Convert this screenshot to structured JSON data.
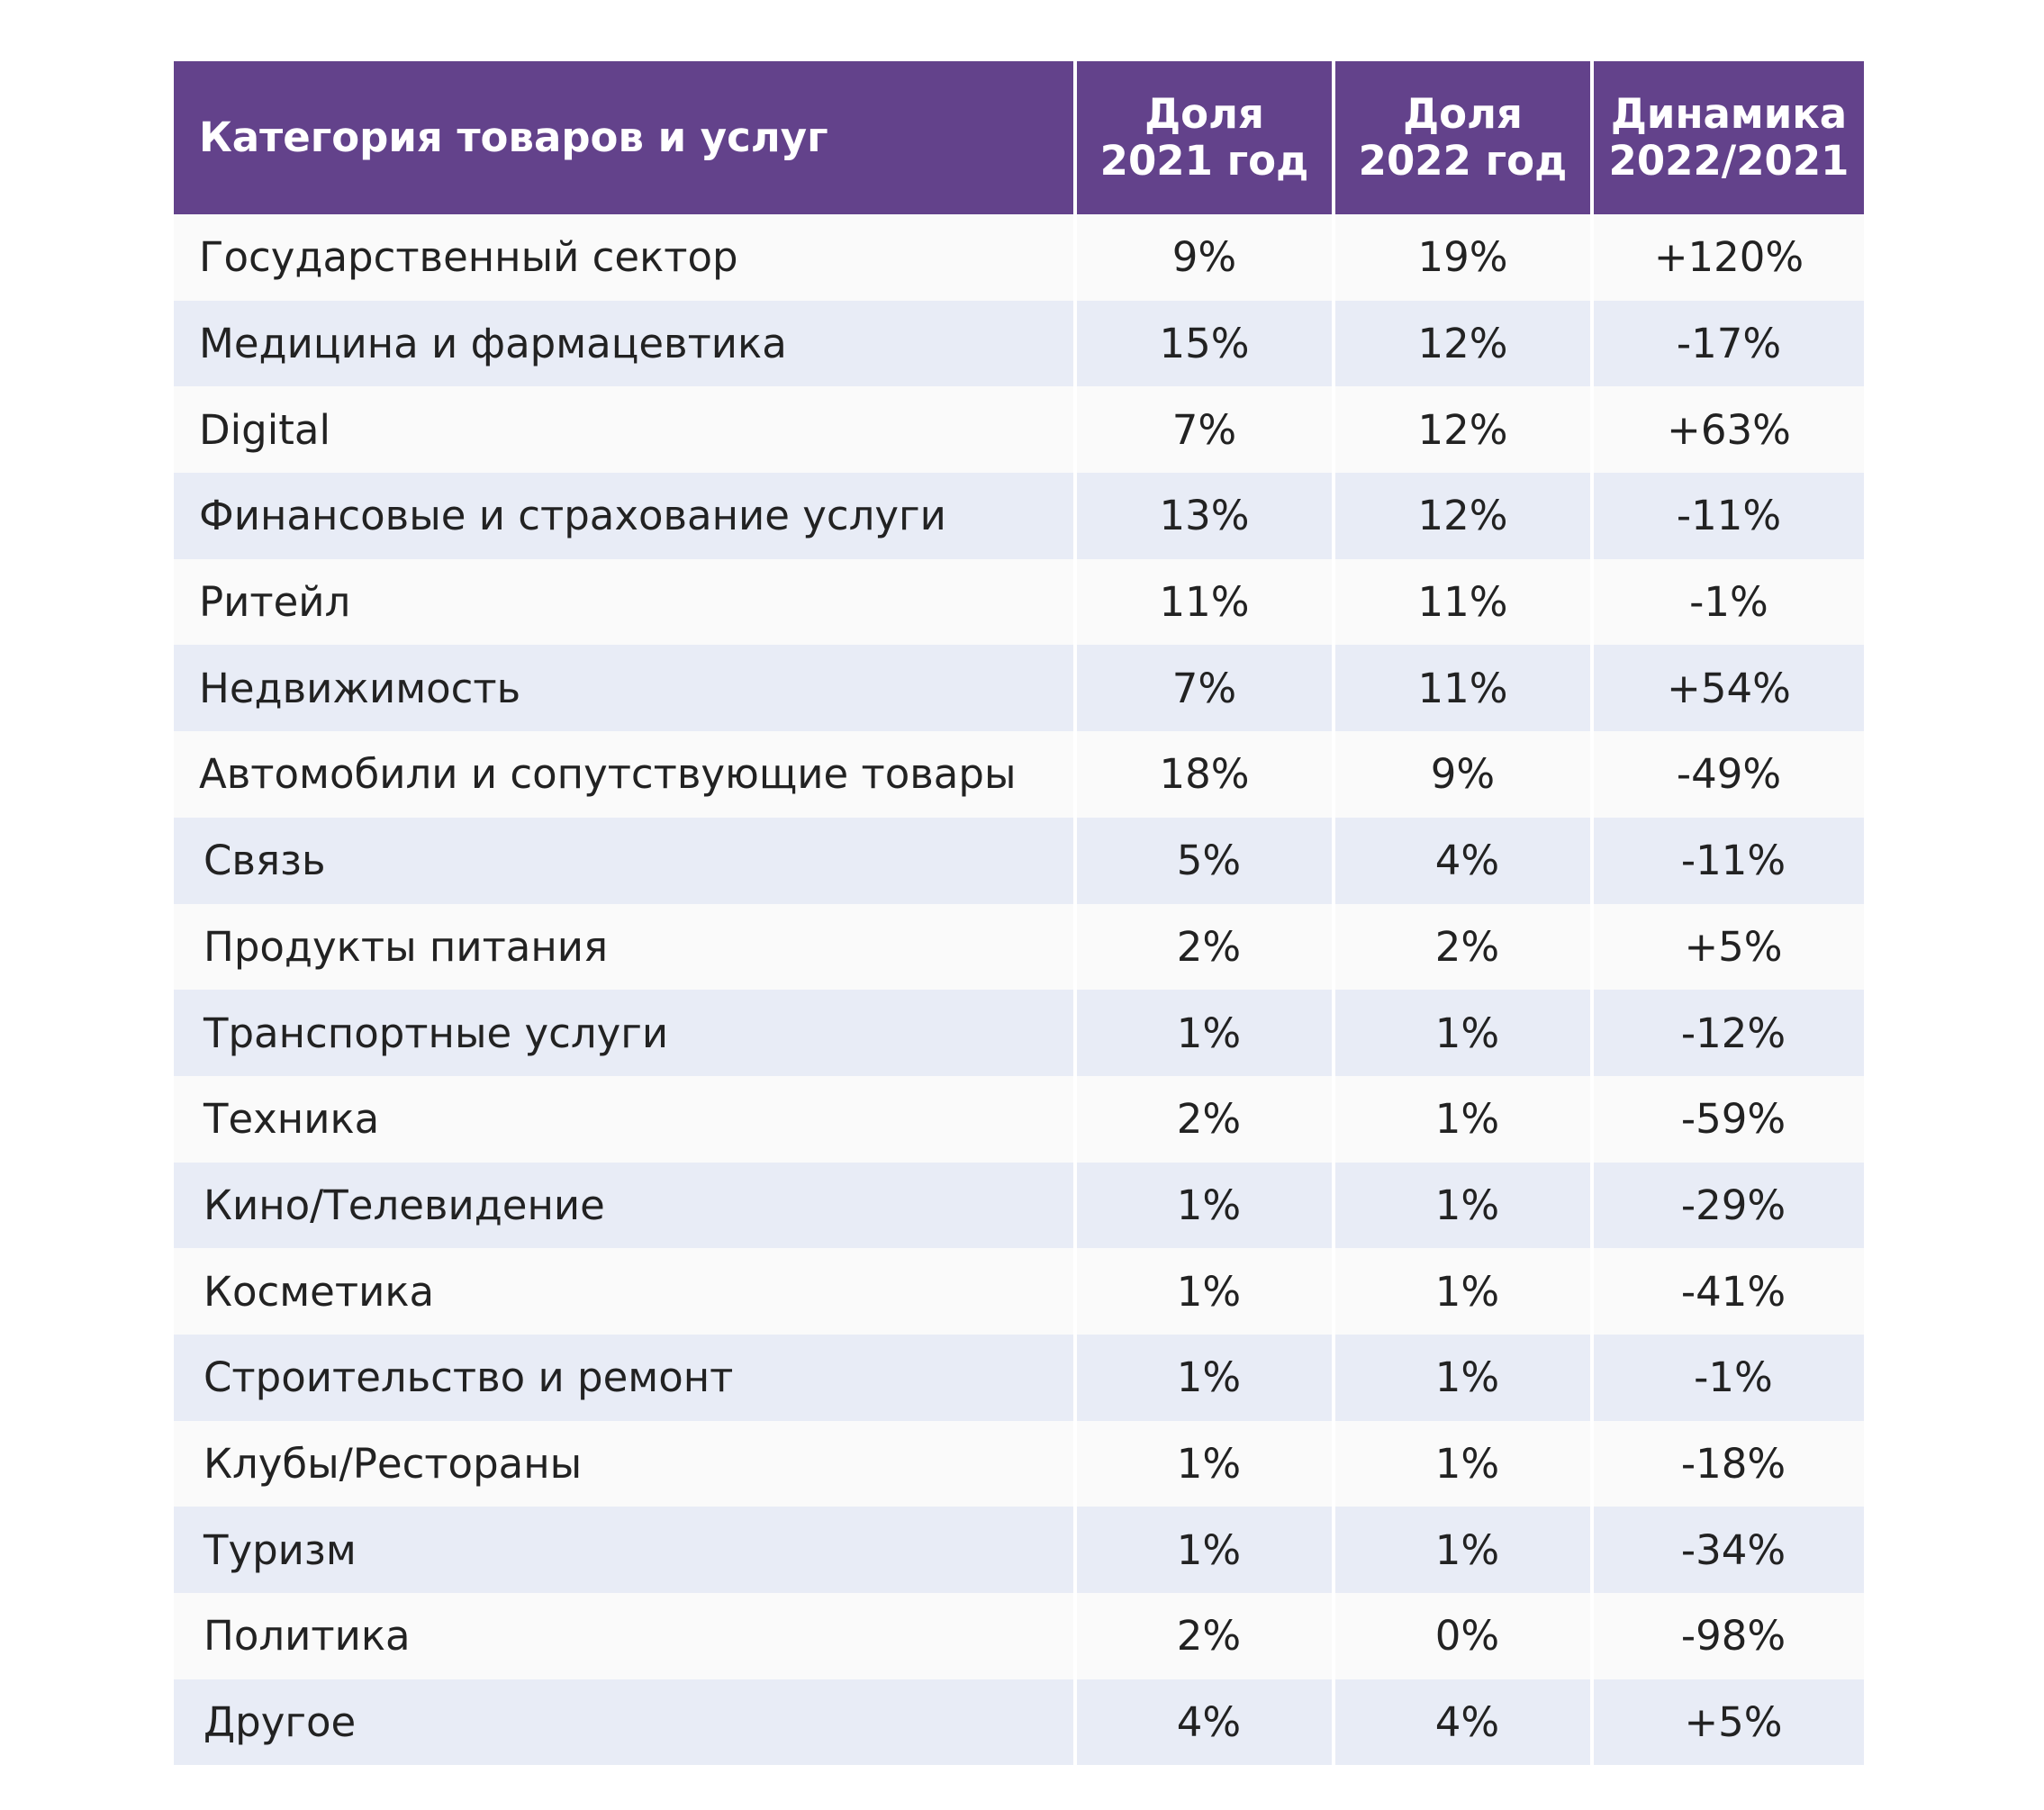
{
  "table": {
    "headers": {
      "category": "Категория товаров и услуг",
      "share_2021": [
        "Доля",
        "2021 год"
      ],
      "share_2022": [
        "Доля",
        "2022 год"
      ],
      "dynamics": [
        "Динамика",
        "2022/2021"
      ]
    },
    "rows": [
      {
        "category": "Государственный сектор",
        "share_2021": "9%",
        "share_2022": "19%",
        "dynamics": "+120%"
      },
      {
        "category": "Медицина и фармацевтика",
        "share_2021": "15%",
        "share_2022": "12%",
        "dynamics": "-17%"
      },
      {
        "category": "Digital",
        "share_2021": "7%",
        "share_2022": "12%",
        "dynamics": "+63%"
      },
      {
        "category": "Финансовые и страхование услуги",
        "share_2021": "13%",
        "share_2022": "12%",
        "dynamics": "-11%"
      },
      {
        "category": "Ритейл",
        "share_2021": "11%",
        "share_2022": "11%",
        "dynamics": "-1%"
      },
      {
        "category": "Недвижимость",
        "share_2021": "7%",
        "share_2022": "11%",
        "dynamics": "+54%"
      },
      {
        "category": "Автомобили и сопутствующие товары",
        "share_2021": "18%",
        "share_2022": "9%",
        "dynamics": "-49%"
      },
      {
        "category": "Связь",
        "share_2021": "5%",
        "share_2022": "4%",
        "dynamics": "-11%"
      },
      {
        "category": "Продукты питания",
        "share_2021": "2%",
        "share_2022": "2%",
        "dynamics": "+5%"
      },
      {
        "category": "Транспортные услуги",
        "share_2021": "1%",
        "share_2022": "1%",
        "dynamics": "-12%"
      },
      {
        "category": "Техника",
        "share_2021": "2%",
        "share_2022": "1%",
        "dynamics": "-59%"
      },
      {
        "category": "Кино/Телевидение",
        "share_2021": "1%",
        "share_2022": "1%",
        "dynamics": "-29%"
      },
      {
        "category": "Косметика",
        "share_2021": "1%",
        "share_2022": "1%",
        "dynamics": "-41%"
      },
      {
        "category": "Строительство и ремонт",
        "share_2021": "1%",
        "share_2022": "1%",
        "dynamics": "-1%"
      },
      {
        "category": "Клубы/Рестораны",
        "share_2021": "1%",
        "share_2022": "1%",
        "dynamics": "-18%"
      },
      {
        "category": "Туризм",
        "share_2021": "1%",
        "share_2022": "1%",
        "dynamics": "-34%"
      },
      {
        "category": "Политика",
        "share_2021": "2%",
        "share_2022": "0%",
        "dynamics": "-98%"
      },
      {
        "category": "Другое",
        "share_2021": "4%",
        "share_2022": "4%",
        "dynamics": "+5%"
      }
    ]
  },
  "colors": {
    "header_bg": "#63428b",
    "header_text": "#ffffff",
    "row_light": "#fafafa",
    "row_band": "#e8ecf6",
    "text": "#222222"
  }
}
